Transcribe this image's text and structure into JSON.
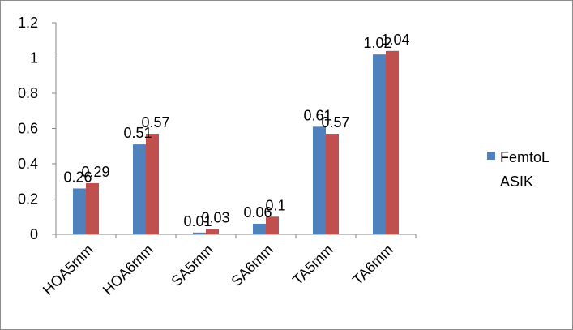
{
  "chart_data": {
    "type": "bar",
    "categories": [
      "HOA5mm",
      "HOA6mm",
      "SA5mm",
      "SA6mm",
      "TA5mm",
      "TA6mm"
    ],
    "series": [
      {
        "name": "FemtoLASIK",
        "color": "#4f81bd",
        "values": [
          0.26,
          0.51,
          0.01,
          0.06,
          0.61,
          1.02
        ],
        "labels": [
          "0.26",
          "0.51",
          "0.01",
          "0.06",
          "0.61",
          "1.02"
        ]
      },
      {
        "color": "#c0504d",
        "values": [
          0.29,
          0.57,
          0.03,
          0.1,
          0.57,
          1.04
        ],
        "labels": [
          "0.29",
          "0.57",
          "0.03",
          "0.1",
          "0.57",
          "1.04"
        ]
      }
    ],
    "yticks": [
      "0",
      "0.2",
      "0.4",
      "0.6",
      "0.8",
      "1",
      "1.2"
    ],
    "ylim": [
      0,
      1.2
    ],
    "grid": false,
    "legend_position": "right"
  },
  "legend": {
    "label": "FemtoLASIK"
  }
}
